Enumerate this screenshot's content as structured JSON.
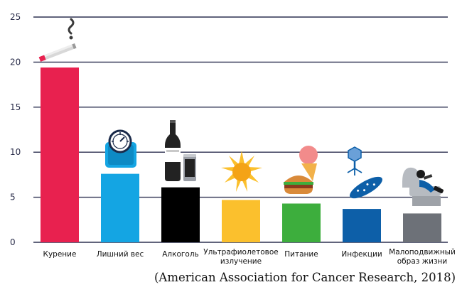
{
  "chart_data": {
    "type": "bar",
    "categories": [
      "Курение",
      "Лишний вес",
      "Алкоголь",
      [
        "Ультрафиолетовое",
        "излучение"
      ],
      "Питание",
      "Инфекции",
      [
        "Малоподвижный",
        "образ жизни"
      ]
    ],
    "values": [
      19.4,
      7.6,
      6.1,
      4.7,
      4.3,
      3.7,
      3.2
    ],
    "colors": [
      "#e8214f",
      "#14a5e3",
      "#000000",
      "#fbc02d",
      "#3dae3d",
      "#0d5fa8",
      "#6d7178"
    ],
    "ylim": [
      0,
      25
    ],
    "yticks": [
      0,
      5,
      10,
      15,
      20,
      25
    ],
    "grid": true,
    "icons": [
      "cigarette-icon",
      "scale-icon",
      "bottle-can-icon",
      "sun-icon",
      "food-icon",
      "virus-bacteria-icon",
      "armchair-icon"
    ]
  },
  "source": "(American Association for Cancer Research, 2018)"
}
